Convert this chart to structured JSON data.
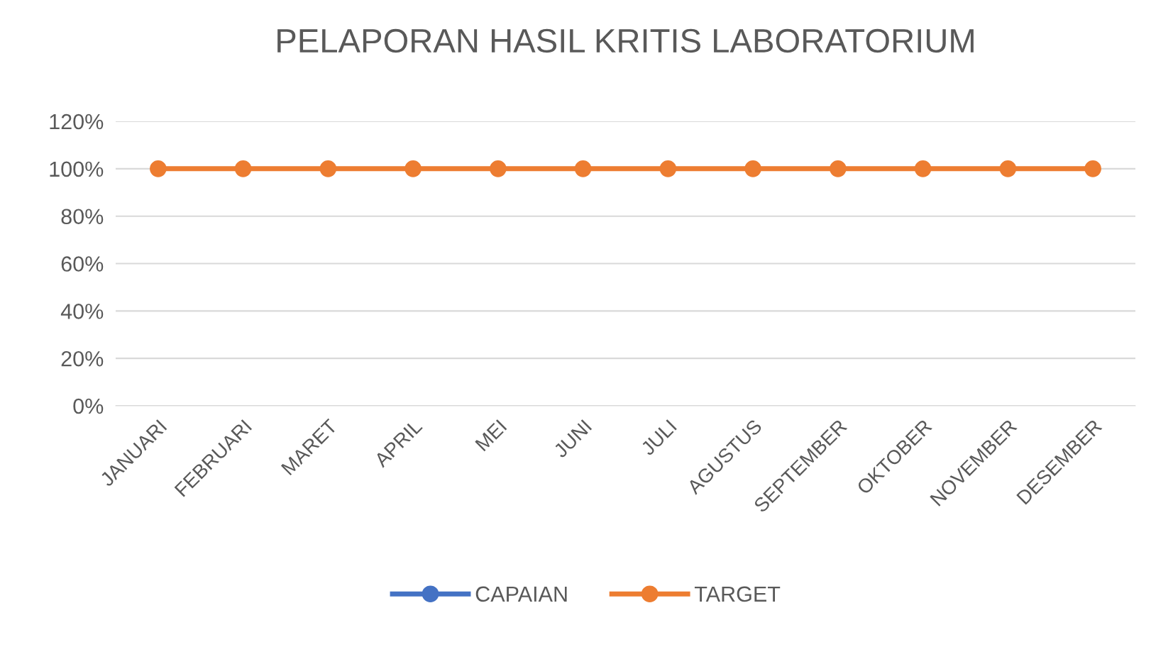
{
  "chart_data": {
    "type": "line",
    "title": "PELAPORAN HASIL KRITIS LABORATORIUM",
    "categories": [
      "JANUARI",
      "FEBRUARI",
      "MARET",
      "APRIL",
      "MEI",
      "JUNI",
      "JULI",
      "AGUSTUS",
      "SEPTEMBER",
      "OKTOBER",
      "NOVEMBER",
      "DESEMBER"
    ],
    "series": [
      {
        "name": "CAPAIAN",
        "color": "#4472c4",
        "values": [
          null,
          null,
          null,
          null,
          null,
          null,
          null,
          null,
          null,
          null,
          null,
          null
        ]
      },
      {
        "name": "TARGET",
        "color": "#ed7d31",
        "values": [
          1,
          1,
          1,
          1,
          1,
          1,
          1,
          1,
          1,
          1,
          1,
          1
        ]
      }
    ],
    "ylim": [
      0,
      1.2
    ],
    "yticks": [
      {
        "value": 0,
        "label": "0%"
      },
      {
        "value": 0.2,
        "label": "20%"
      },
      {
        "value": 0.4,
        "label": "40%"
      },
      {
        "value": 0.6,
        "label": "60%"
      },
      {
        "value": 0.8,
        "label": "80%"
      },
      {
        "value": 1,
        "label": "100%"
      },
      {
        "value": 1.2,
        "label": "120%"
      }
    ],
    "grid": "y",
    "legend": "bottom",
    "marker": "circle",
    "line_style": "solid"
  }
}
